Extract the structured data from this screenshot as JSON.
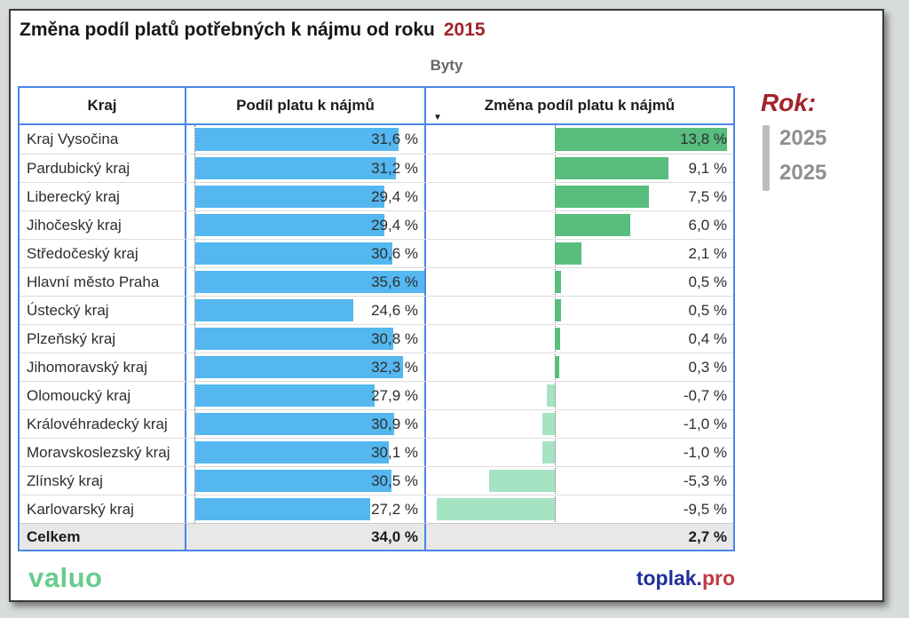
{
  "title": {
    "text": "Změna podíl platů potřebných k nájmu od roku",
    "year": "2015"
  },
  "subtitle": "Byty",
  "table": {
    "columns": {
      "kraj": "Kraj",
      "podil": "Podíl platu k nájmů",
      "zmena": "Změna podíl platu k nájmů"
    },
    "sort_icon": "descending-triangle",
    "rows": [
      {
        "name": "Kraj Vysočina",
        "podil_label": "31,6 %",
        "zmena_label": "13,8 %"
      },
      {
        "name": "Pardubický kraj",
        "podil_label": "31,2 %",
        "zmena_label": "9,1 %"
      },
      {
        "name": "Liberecký kraj",
        "podil_label": "29,4 %",
        "zmena_label": "7,5 %"
      },
      {
        "name": "Jihočeský kraj",
        "podil_label": "29,4 %",
        "zmena_label": "6,0 %"
      },
      {
        "name": "Středočeský kraj",
        "podil_label": "30,6 %",
        "zmena_label": "2,1 %"
      },
      {
        "name": "Hlavní město Praha",
        "podil_label": "35,6 %",
        "zmena_label": "0,5 %"
      },
      {
        "name": "Ústecký kraj",
        "podil_label": "24,6 %",
        "zmena_label": "0,5 %"
      },
      {
        "name": "Plzeňský kraj",
        "podil_label": "30,8 %",
        "zmena_label": "0,4 %"
      },
      {
        "name": "Jihomoravský kraj",
        "podil_label": "32,3 %",
        "zmena_label": "0,3 %"
      },
      {
        "name": "Olomoucký kraj",
        "podil_label": "27,9 %",
        "zmena_label": "-0,7 %"
      },
      {
        "name": "Královéhradecký kraj",
        "podil_label": "30,9 %",
        "zmena_label": "-1,0 %"
      },
      {
        "name": "Moravskoslezský kraj",
        "podil_label": "30,1 %",
        "zmena_label": "-1,0 %"
      },
      {
        "name": "Zlínský kraj",
        "podil_label": "30,5 %",
        "zmena_label": "-5,3 %"
      },
      {
        "name": "Karlovarský kraj",
        "podil_label": "27,2 %",
        "zmena_label": "-9,5 %"
      }
    ],
    "total": {
      "name": "Celkem",
      "podil_label": "34,0 %",
      "zmena_label": "2,7 %"
    }
  },
  "slicer": {
    "label": "Rok:",
    "values": [
      "2025",
      "2025"
    ]
  },
  "footer": {
    "brand": "valuo",
    "site_name": "toplak.",
    "site_tld": "pro"
  },
  "colors": {
    "bar_blue": "#54B7F0",
    "bar_green": "#58BD7D",
    "bar_mint": "#A5E3C3",
    "table_border": "#4A86E8",
    "accent_red": "#A2232A",
    "brand_green": "#67CD8C",
    "site_navy": "#20309C",
    "site_red": "#BF3A43"
  },
  "chart_data": {
    "type": "bar",
    "title": "Změna podíl platů potřebných k nájmu od roku 2015",
    "subtitle": "Byty",
    "categories": [
      "Kraj Vysočina",
      "Pardubický kraj",
      "Liberecký kraj",
      "Jihočeský kraj",
      "Středočeský kraj",
      "Hlavní město Praha",
      "Ústecký kraj",
      "Plzeňský kraj",
      "Jihomoravský kraj",
      "Olomoucký kraj",
      "Královéhradecký kraj",
      "Moravskoslezský kraj",
      "Zlínský kraj",
      "Karlovarský kraj"
    ],
    "series": [
      {
        "name": "Podíl platu k nájmů",
        "values": [
          31.6,
          31.2,
          29.4,
          29.4,
          30.6,
          35.6,
          24.6,
          30.8,
          32.3,
          27.9,
          30.9,
          30.1,
          30.5,
          27.2
        ]
      },
      {
        "name": "Změna podíl platu k nájmů",
        "values": [
          13.8,
          9.1,
          7.5,
          6.0,
          2.1,
          0.5,
          0.5,
          0.4,
          0.3,
          -0.7,
          -1.0,
          -1.0,
          -5.3,
          -9.5
        ]
      }
    ],
    "total_row": {
      "label": "Celkem",
      "values": [
        34.0,
        2.7
      ]
    },
    "value_format": "percent-czech-comma",
    "xlim_podil": [
      0,
      35.6
    ],
    "xlim_zmena": [
      -9.5,
      13.8
    ],
    "sorted_by": "Změna podíl platu k nájmů descending",
    "orientation": "horizontal",
    "legend": "none"
  }
}
